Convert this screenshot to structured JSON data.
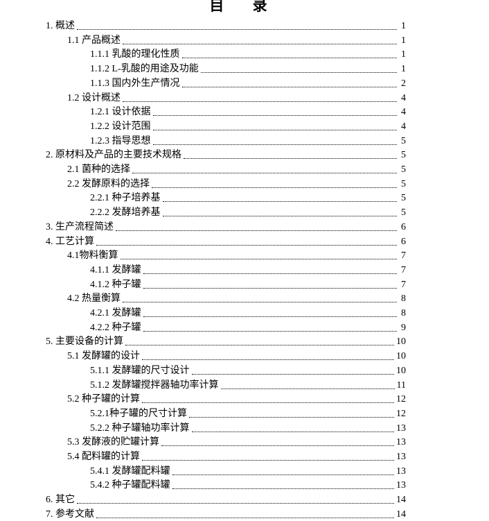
{
  "title": "目 录",
  "entries": [
    {
      "level": 1,
      "label": "1. 概述",
      "page": "1"
    },
    {
      "level": 2,
      "label": "1.1  产品概述",
      "page": "1"
    },
    {
      "level": 3,
      "label": "1.1.1  乳酸的理化性质",
      "page": "1"
    },
    {
      "level": 3,
      "label": "1.1.2 L-乳酸的用途及功能",
      "page": "1"
    },
    {
      "level": 3,
      "label": "1.1.3  国内外生产情况",
      "page": "2"
    },
    {
      "level": 2,
      "label": "1.2  设计概述",
      "page": "4"
    },
    {
      "level": 3,
      "label": "1.2.1  设计依据",
      "page": "4"
    },
    {
      "level": 3,
      "label": "1.2.2  设计范围",
      "page": "4"
    },
    {
      "level": 3,
      "label": "1.2.3  指导思想",
      "page": "5"
    },
    {
      "level": 1,
      "label": "2. 原材料及产品的主要技术规格",
      "page": "5"
    },
    {
      "level": 2,
      "label": "2.1  菌种的选择",
      "page": "5"
    },
    {
      "level": 2,
      "label": "2.2  发酵原料的选择",
      "page": "5"
    },
    {
      "level": 3,
      "label": "2.2.1  种子培养基",
      "page": "5"
    },
    {
      "level": 3,
      "label": "2.2.2  发酵培养基",
      "page": "5"
    },
    {
      "level": 1,
      "label": "3. 生产流程简述",
      "page": "6"
    },
    {
      "level": 1,
      "label": "4. 工艺计算",
      "page": "6"
    },
    {
      "level": 2,
      "label": "4.1物料衡算",
      "page": "7"
    },
    {
      "level": 3,
      "label": "4.1.1  发酵罐",
      "page": "7"
    },
    {
      "level": 3,
      "label": "4.1.2  种子罐",
      "page": "7"
    },
    {
      "level": 2,
      "label": "4.2  热量衡算",
      "page": "8"
    },
    {
      "level": 3,
      "label": "4.2.1  发酵罐",
      "page": "8"
    },
    {
      "level": 3,
      "label": "4.2.2  种子罐",
      "page": "9"
    },
    {
      "level": 1,
      "label": "5. 主要设备的计算",
      "page": "10"
    },
    {
      "level": 2,
      "label": "5.1  发酵罐的设计",
      "page": "10"
    },
    {
      "level": 3,
      "label": "5.1.1  发酵罐的尺寸设计",
      "page": "10"
    },
    {
      "level": 3,
      "label": "5.1.2  发酵罐搅拌器轴功率计算",
      "page": "11"
    },
    {
      "level": 2,
      "label": "5.2  种子罐的计算",
      "page": "12"
    },
    {
      "level": 3,
      "label": "5.2.1种子罐的尺寸计算",
      "page": "12"
    },
    {
      "level": 3,
      "label": "5.2.2  种子罐轴功率计算",
      "page": "13"
    },
    {
      "level": 2,
      "label": "5.3  发酵液的贮罐计算",
      "page": "13"
    },
    {
      "level": 2,
      "label": "5.4  配料罐的计算",
      "page": "13"
    },
    {
      "level": 3,
      "label": "5.4.1  发酵罐配料罐",
      "page": "13"
    },
    {
      "level": 3,
      "label": "5.4.2  种子罐配料罐",
      "page": "13"
    },
    {
      "level": 1,
      "label": "6. 其它",
      "page": "14"
    },
    {
      "level": 1,
      "label": "7. 参考文献",
      "page": "14"
    }
  ]
}
